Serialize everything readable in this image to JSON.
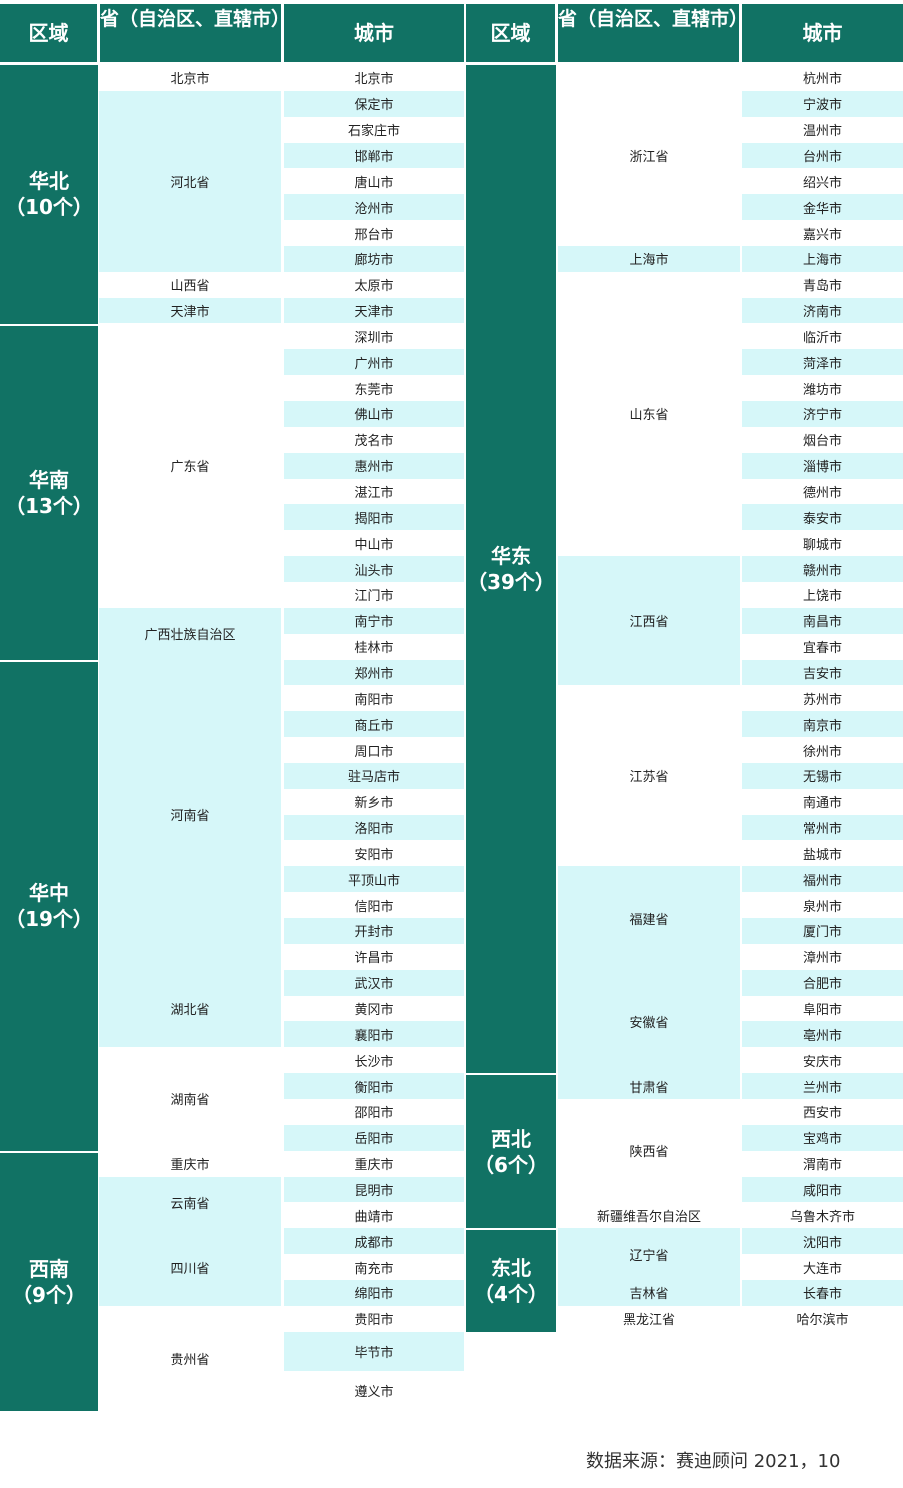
{
  "headers": {
    "region": "区域",
    "province": "省（自治区、直辖市）",
    "city": "城市"
  },
  "left": [
    {
      "region": "华北\n（10个）",
      "provinces": [
        {
          "name": "北京市",
          "cities": [
            "北京市"
          ]
        },
        {
          "name": "河北省",
          "cities": [
            "保定市",
            "石家庄市",
            "邯郸市",
            "唐山市",
            "沧州市",
            "邢台市",
            "廊坊市"
          ]
        },
        {
          "name": "山西省",
          "cities": [
            "太原市"
          ]
        },
        {
          "name": "天津市",
          "cities": [
            "天津市"
          ]
        }
      ]
    },
    {
      "region": "华南\n（13个）",
      "provinces": [
        {
          "name": "广东省",
          "cities": [
            "深圳市",
            "广州市",
            "东莞市",
            "佛山市",
            "茂名市",
            "惠州市",
            "湛江市",
            "揭阳市",
            "中山市",
            "汕头市",
            "江门市"
          ]
        },
        {
          "name": "广西壮族自治区",
          "cities": [
            "南宁市",
            "桂林市"
          ]
        }
      ]
    },
    {
      "region": "华中\n（19个）",
      "provinces": [
        {
          "name": "河南省",
          "cities": [
            "郑州市",
            "南阳市",
            "商丘市",
            "周口市",
            "驻马店市",
            "新乡市",
            "洛阳市",
            "安阳市",
            "平顶山市",
            "信阳市",
            "开封市",
            "许昌市"
          ]
        },
        {
          "name": "湖北省",
          "cities": [
            "武汉市",
            "黄冈市",
            "襄阳市"
          ]
        },
        {
          "name": "湖南省",
          "cities": [
            "长沙市",
            "衡阳市",
            "邵阳市",
            "岳阳市"
          ]
        }
      ]
    },
    {
      "region": "西南\n（9个）",
      "provinces": [
        {
          "name": "重庆市",
          "cities": [
            "重庆市"
          ]
        },
        {
          "name": "云南省",
          "cities": [
            "昆明市",
            "曲靖市"
          ]
        },
        {
          "name": "四川省",
          "cities": [
            "成都市",
            "南充市",
            "绵阳市"
          ]
        },
        {
          "name": "贵州省",
          "cities": [
            "贵阳市",
            "毕节市",
            "遵义市"
          ]
        }
      ]
    }
  ],
  "right": [
    {
      "region": "华东\n（39个）",
      "provinces": [
        {
          "name": "浙江省",
          "cities": [
            "杭州市",
            "宁波市",
            "温州市",
            "台州市",
            "绍兴市",
            "金华市",
            "嘉兴市"
          ]
        },
        {
          "name": "上海市",
          "cities": [
            "上海市"
          ]
        },
        {
          "name": "山东省",
          "cities": [
            "青岛市",
            "济南市",
            "临沂市",
            "菏泽市",
            "潍坊市",
            "济宁市",
            "烟台市",
            "淄博市",
            "德州市",
            "泰安市",
            "聊城市"
          ]
        },
        {
          "name": "江西省",
          "cities": [
            "赣州市",
            "上饶市",
            "南昌市",
            "宜春市",
            "吉安市"
          ]
        },
        {
          "name": "江苏省",
          "cities": [
            "苏州市",
            "南京市",
            "徐州市",
            "无锡市",
            "南通市",
            "常州市",
            "盐城市"
          ]
        },
        {
          "name": "福建省",
          "cities": [
            "福州市",
            "泉州市",
            "厦门市",
            "漳州市"
          ]
        },
        {
          "name": "安徽省",
          "cities": [
            "合肥市",
            "阜阳市",
            "亳州市",
            "安庆市"
          ]
        }
      ]
    },
    {
      "region": "西北\n（6个）",
      "provinces": [
        {
          "name": "甘肃省",
          "cities": [
            "兰州市"
          ]
        },
        {
          "name": "陕西省",
          "cities": [
            "西安市",
            "宝鸡市",
            "渭南市",
            "咸阳市"
          ]
        },
        {
          "name": "新疆维吾尔自治区",
          "cities": [
            "乌鲁木齐市"
          ]
        }
      ]
    },
    {
      "region": "东北\n（4个）",
      "provinces": [
        {
          "name": "辽宁省",
          "cities": [
            "沈阳市",
            "大连市"
          ]
        },
        {
          "name": "吉林省",
          "cities": [
            "长春市"
          ]
        },
        {
          "name": "黑龙江省",
          "cities": [
            "哈尔滨市"
          ]
        }
      ]
    }
  ],
  "source": "数据来源：赛迪顾问  2021，10",
  "colors": {
    "header": "#117264",
    "stripe": "#d6f7f9"
  }
}
